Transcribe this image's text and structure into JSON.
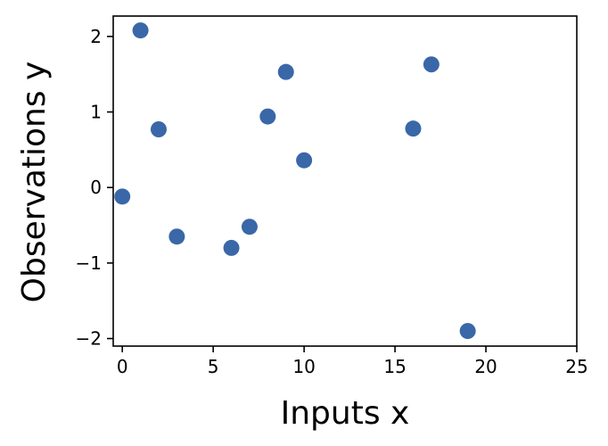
{
  "chart_data": {
    "type": "scatter",
    "title": "",
    "xlabel": "Inputs x",
    "ylabel": "Observations y",
    "xlim": [
      -0.5,
      25
    ],
    "ylim": [
      -2.1,
      2.27
    ],
    "xticks": [
      0,
      5,
      10,
      15,
      20,
      25
    ],
    "yticks": [
      -2,
      -1,
      0,
      1,
      2
    ],
    "xtick_labels": [
      "0",
      "5",
      "10",
      "15",
      "20",
      "25"
    ],
    "ytick_labels": [
      "−2",
      "−1",
      "0",
      "1",
      "2"
    ],
    "grid": false,
    "legend": null,
    "series": [
      {
        "color": "#3a67a8",
        "points": [
          {
            "x": 0,
            "y": -0.12
          },
          {
            "x": 1,
            "y": 2.08
          },
          {
            "x": 2,
            "y": 0.77
          },
          {
            "x": 3,
            "y": -0.65
          },
          {
            "x": 6,
            "y": -0.8
          },
          {
            "x": 7,
            "y": -0.52
          },
          {
            "x": 8,
            "y": 0.94
          },
          {
            "x": 9,
            "y": 1.53
          },
          {
            "x": 10,
            "y": 0.36
          },
          {
            "x": 16,
            "y": 0.78
          },
          {
            "x": 17,
            "y": 1.63
          },
          {
            "x": 19,
            "y": -1.9
          }
        ]
      }
    ]
  }
}
